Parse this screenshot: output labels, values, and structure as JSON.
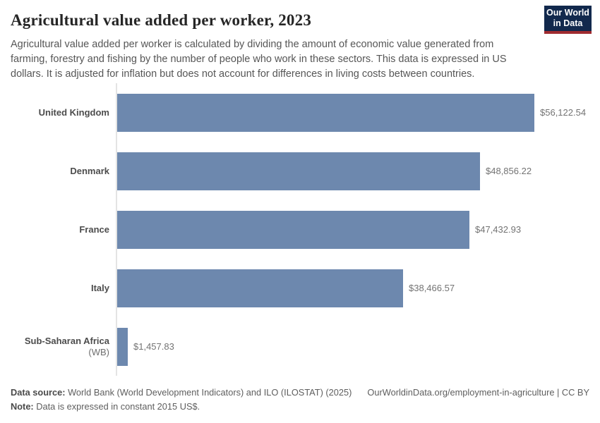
{
  "header": {
    "title": "Agricultural value added per worker, 2023",
    "subtitle": "Agricultural value added per worker is calculated by dividing the amount of economic value generated from farming, forestry and fishing by the number of people who work in these sectors. This data is expressed in US dollars. It is adjusted for inflation but does not account for differences in living costs between countries.",
    "logo": {
      "line1": "Our World",
      "line2": "in Data",
      "bg_color": "#12294d",
      "accent_color": "#a02b30"
    }
  },
  "chart_data": {
    "type": "bar",
    "orientation": "horizontal",
    "title": "Agricultural value added per worker, 2023",
    "categories": [
      "United Kingdom",
      "Denmark",
      "France",
      "Italy",
      "Sub-Saharan Africa (WB)"
    ],
    "values": [
      56122.54,
      48856.22,
      47432.93,
      38466.57,
      1457.83
    ],
    "value_labels": [
      "$56,122.54",
      "$48,856.22",
      "$47,432.93",
      "$38,466.57",
      "$1,457.83"
    ],
    "entities": [
      {
        "label": "United Kingdom",
        "suffix": ""
      },
      {
        "label": "Denmark",
        "suffix": ""
      },
      {
        "label": "France",
        "suffix": ""
      },
      {
        "label": "Italy",
        "suffix": ""
      },
      {
        "label": "Sub-Saharan Africa",
        "suffix": "(WB)"
      }
    ],
    "xlabel": "",
    "ylabel": "",
    "xlim": [
      0,
      56122.54
    ],
    "grid": false,
    "legend": false,
    "bar_color": "#6d88ae",
    "axis_color": "#e4e4e4",
    "unit": "constant 2015 US$"
  },
  "footer": {
    "sources_label": "Data source:",
    "sources_text": " World Bank (World Development Indicators) and ILO (ILOSTAT) (2025)",
    "link": "OurWorldinData.org/employment-in-agriculture | CC BY",
    "note_label": "Note:",
    "note_text": " Data is expressed in constant 2015 US$."
  }
}
